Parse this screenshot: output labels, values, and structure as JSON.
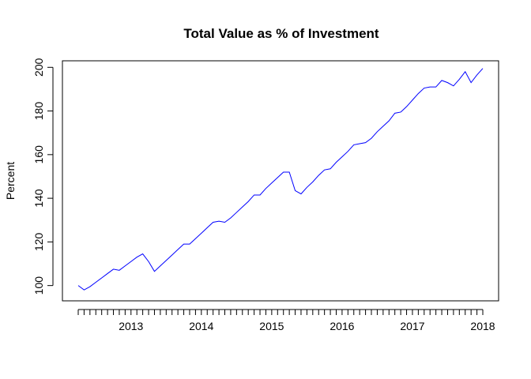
{
  "chart_data": {
    "type": "line",
    "title": "Total Value as % of Investment",
    "xlabel": "",
    "ylabel": "Percent",
    "x_tick_labels": [
      "2013",
      "2014",
      "2015",
      "2016",
      "2017",
      "2018"
    ],
    "y_ticks": [
      100,
      120,
      140,
      160,
      180,
      200
    ],
    "ylim": [
      93,
      203
    ],
    "xlim": [
      "2012-03",
      "2018-03"
    ],
    "grid": false,
    "series": [
      {
        "color": "#0000ff",
        "x": [
          "2012-04",
          "2012-05",
          "2012-06",
          "2012-07",
          "2012-08",
          "2012-09",
          "2012-10",
          "2012-11",
          "2012-12",
          "2013-01",
          "2013-02",
          "2013-03",
          "2013-04",
          "2013-05",
          "2013-06",
          "2013-07",
          "2013-08",
          "2013-09",
          "2013-10",
          "2013-11",
          "2013-12",
          "2014-01",
          "2014-02",
          "2014-03",
          "2014-04",
          "2014-05",
          "2014-06",
          "2014-07",
          "2014-08",
          "2014-09",
          "2014-10",
          "2014-11",
          "2014-12",
          "2015-01",
          "2015-02",
          "2015-03",
          "2015-04",
          "2015-05",
          "2015-06",
          "2015-07",
          "2015-08",
          "2015-09",
          "2015-10",
          "2015-11",
          "2015-12",
          "2016-01",
          "2016-02",
          "2016-03",
          "2016-04",
          "2016-05",
          "2016-06",
          "2016-07",
          "2016-08",
          "2016-09",
          "2016-10",
          "2016-11",
          "2016-12",
          "2017-01",
          "2017-02",
          "2017-03",
          "2017-04",
          "2017-05",
          "2017-06",
          "2017-07",
          "2017-08",
          "2017-09",
          "2017-10",
          "2017-11",
          "2017-12",
          "2018-01"
        ],
        "values": [
          100,
          98,
          99.5,
          101.5,
          103.5,
          105.5,
          107.5,
          107,
          109,
          111,
          113,
          114.5,
          111,
          106.5,
          109,
          111.5,
          114,
          116.5,
          119,
          119,
          121.5,
          124,
          126.5,
          129,
          129.5,
          129,
          131,
          133.5,
          136,
          138.5,
          141.5,
          141.5,
          144.5,
          147,
          149.5,
          152,
          152,
          143.5,
          142,
          145,
          147.5,
          150.5,
          153,
          153.5,
          156.5,
          159,
          161.5,
          164.5,
          165,
          165.5,
          167.5,
          170.5,
          173,
          175.5,
          179,
          179.5,
          182,
          185,
          188,
          190.5,
          191,
          191,
          194,
          193,
          191.5,
          194.5,
          198,
          193,
          196.5,
          199.5
        ]
      }
    ]
  }
}
